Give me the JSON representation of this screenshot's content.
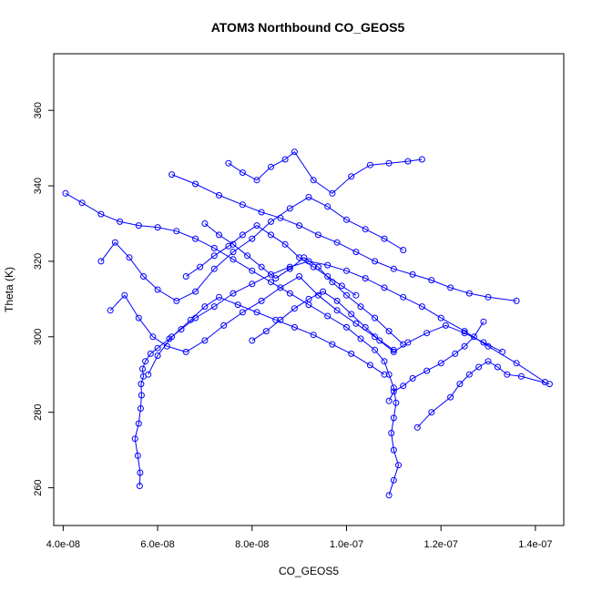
{
  "chart_data": {
    "type": "line",
    "title": "ATOM3 Northbound CO_GEOS5",
    "xlabel": "CO_GEOS5",
    "ylabel": "Theta (K)",
    "xlim": [
      3.8e-08,
      1.46e-07
    ],
    "ylim": [
      250,
      375
    ],
    "grid": false,
    "x_ticks": [
      4e-08,
      6e-08,
      8e-08,
      1e-07,
      1.2e-07,
      1.4e-07
    ],
    "x_tick_labels": [
      "4.0e-08",
      "6.0e-08",
      "8.0e-08",
      "1.0e-07",
      "1.2e-07",
      "1.4e-07"
    ],
    "y_ticks": [
      260,
      280,
      300,
      320,
      340,
      360
    ],
    "y_tick_labels": [
      "260",
      "280",
      "300",
      "320",
      "340",
      "360"
    ],
    "series_color": "#0000ff",
    "marker": "open-circle",
    "series": [
      {
        "x": [
          5.62e-08,
          5.63e-08,
          5.58e-08,
          5.52e-08,
          5.6e-08,
          5.64e-08,
          5.66e-08,
          5.65e-08,
          5.7e-08,
          5.68e-08,
          5.74e-08,
          5.85e-08,
          6e-08,
          6.25e-08,
          6.5e-08,
          6.8e-08,
          7.2e-08,
          7.6e-08,
          8e-08,
          8.4e-08,
          8.8e-08,
          9.2e-08,
          9.6e-08,
          1e-07,
          1.04e-07,
          1.08e-07,
          1.12e-07,
          1.16e-07,
          1.2e-07,
          1.25e-07,
          1.3e-07,
          1.36e-07,
          1.42e-07
        ],
        "y": [
          260.5,
          264.0,
          268.5,
          273.0,
          277.0,
          281.0,
          284.5,
          287.5,
          289.5,
          291.5,
          293.5,
          295.5,
          297.0,
          299.5,
          302.0,
          305.0,
          308.0,
          311.5,
          314.0,
          316.5,
          318.5,
          320.0,
          319.0,
          317.5,
          315.5,
          313.0,
          310.5,
          308.0,
          305.0,
          301.5,
          297.5,
          293.0,
          288.0
        ]
      },
      {
        "x": [
          1.09e-07,
          1.1e-07,
          1.11e-07,
          1.1e-07,
          1.095e-07,
          1.1e-07,
          1.105e-07,
          1.1e-07,
          1.09e-07,
          1.08e-07,
          1.06e-07,
          1.03e-07,
          1e-07,
          9.6e-08,
          9.2e-08,
          8.8e-08,
          8.4e-08,
          8e-08,
          7.6e-08,
          7.2e-08,
          6.8e-08,
          6.4e-08,
          6e-08,
          5.6e-08,
          5.2e-08,
          4.8e-08,
          4.4e-08,
          4.05e-08
        ],
        "y": [
          258.0,
          262.0,
          266.0,
          270.0,
          274.5,
          278.5,
          282.5,
          286.5,
          290.0,
          293.5,
          296.5,
          299.5,
          302.5,
          305.5,
          308.5,
          311.5,
          314.5,
          317.5,
          320.5,
          323.5,
          326.0,
          328.0,
          329.0,
          329.5,
          330.5,
          332.5,
          335.5,
          338.0
        ]
      },
      {
        "x": [
          6.3e-08,
          6.8e-08,
          7.3e-08,
          7.8e-08,
          8.2e-08,
          8.6e-08,
          9e-08,
          9.4e-08,
          9.8e-08,
          1.02e-07,
          1.06e-07,
          1.1e-07,
          1.14e-07,
          1.18e-07,
          1.22e-07,
          1.26e-07,
          1.3e-07,
          1.36e-07
        ],
        "y": [
          343.0,
          340.5,
          337.5,
          335.0,
          333.0,
          331.5,
          329.5,
          327.0,
          325.0,
          322.5,
          320.0,
          318.0,
          316.5,
          315.0,
          313.0,
          311.5,
          310.5,
          309.5
        ]
      },
      {
        "x": [
          7.5e-08,
          7.8e-08,
          8.1e-08,
          8.4e-08,
          8.7e-08,
          8.9e-08,
          9.3e-08,
          9.7e-08,
          1.01e-07,
          1.05e-07,
          1.09e-07,
          1.13e-07,
          1.16e-07
        ],
        "y": [
          346.0,
          343.5,
          341.5,
          345.0,
          347.0,
          349.0,
          341.5,
          338.0,
          342.5,
          345.5,
          346.0,
          346.5,
          347.0
        ]
      },
      {
        "x": [
          1.08e-07,
          1.05e-07,
          1.01e-07,
          9.7e-08,
          9.3e-08,
          8.9e-08,
          8.5e-08,
          8.1e-08,
          7.7e-08,
          7.3e-08,
          7e-08,
          6.7e-08,
          6.3e-08,
          6e-08,
          5.8e-08
        ],
        "y": [
          290.0,
          292.5,
          295.5,
          298.0,
          300.5,
          302.5,
          304.5,
          306.5,
          308.5,
          310.5,
          308.0,
          304.5,
          300.0,
          295.0,
          290.0
        ]
      },
      {
        "x": [
          1.15e-07,
          1.18e-07,
          1.22e-07,
          1.24e-07,
          1.26e-07,
          1.28e-07,
          1.3e-07,
          1.32e-07,
          1.34e-07,
          1.37e-07,
          1.43e-07
        ],
        "y": [
          276.0,
          280.0,
          284.0,
          287.5,
          290.0,
          292.0,
          293.5,
          292.0,
          290.0,
          289.5,
          287.5
        ]
      },
      {
        "x": [
          4.8e-08,
          5.1e-08,
          5.4e-08,
          5.7e-08,
          6e-08,
          6.4e-08,
          6.8e-08,
          7.2e-08,
          7.6e-08,
          8e-08,
          8.4e-08,
          8.8e-08,
          9.2e-08,
          9.6e-08,
          1e-07,
          1.04e-07,
          1.08e-07,
          1.12e-07
        ],
        "y": [
          320.0,
          325.0,
          321.0,
          316.0,
          312.5,
          309.5,
          312.0,
          318.0,
          322.5,
          326.0,
          330.5,
          334.0,
          337.0,
          334.5,
          331.0,
          328.5,
          326.0,
          323.0
        ]
      },
      {
        "x": [
          5e-08,
          5.3e-08,
          5.6e-08,
          5.9e-08,
          6.2e-08,
          6.6e-08,
          7e-08,
          7.4e-08,
          7.8e-08,
          8.2e-08,
          8.6e-08,
          9e-08,
          9.4e-08,
          9.8e-08,
          1.02e-07,
          1.06e-07,
          1.1e-07
        ],
        "y": [
          307.0,
          311.0,
          305.0,
          300.0,
          297.5,
          296.0,
          299.0,
          303.0,
          306.5,
          309.5,
          313.0,
          316.0,
          311.0,
          307.0,
          303.5,
          300.0,
          296.5
        ]
      },
      {
        "x": [
          8e-08,
          8.3e-08,
          8.6e-08,
          8.9e-08,
          9.2e-08,
          9.5e-08,
          9.8e-08,
          1.01e-07,
          1.04e-07,
          1.07e-07,
          1.1e-07,
          1.13e-07,
          1.17e-07,
          1.21e-07,
          1.25e-07,
          1.29e-07,
          1.33e-07
        ],
        "y": [
          299.0,
          301.5,
          304.5,
          307.5,
          310.0,
          312.0,
          309.5,
          306.0,
          302.5,
          299.0,
          296.0,
          298.5,
          301.0,
          303.0,
          301.0,
          298.5,
          296.0
        ]
      },
      {
        "x": [
          7e-08,
          7.3e-08,
          7.6e-08,
          7.9e-08,
          8.2e-08,
          8.5e-08,
          8.8e-08,
          9.1e-08,
          9.4e-08,
          9.7e-08,
          1e-07,
          1.03e-07,
          1.06e-07,
          1.09e-07,
          1.12e-07
        ],
        "y": [
          330.0,
          327.0,
          324.5,
          321.5,
          318.5,
          315.5,
          318.0,
          321.0,
          318.5,
          314.5,
          311.0,
          308.0,
          305.0,
          301.5,
          298.0
        ]
      },
      {
        "x": [
          1.09e-07,
          1.1e-07,
          1.12e-07,
          1.14e-07,
          1.17e-07,
          1.2e-07,
          1.23e-07,
          1.25e-07,
          1.27e-07,
          1.29e-07
        ],
        "y": [
          283.0,
          285.5,
          287.0,
          289.0,
          291.0,
          293.0,
          295.5,
          297.5,
          300.0,
          304.0
        ]
      },
      {
        "x": [
          6.6e-08,
          6.9e-08,
          7.2e-08,
          7.5e-08,
          7.8e-08,
          8.1e-08,
          8.4e-08,
          8.7e-08,
          9e-08,
          9.3e-08,
          9.6e-08,
          9.9e-08,
          1.02e-07
        ],
        "y": [
          316.0,
          318.5,
          321.5,
          324.0,
          327.0,
          329.5,
          327.0,
          324.5,
          321.0,
          318.5,
          316.0,
          313.5,
          311.0
        ]
      }
    ]
  }
}
